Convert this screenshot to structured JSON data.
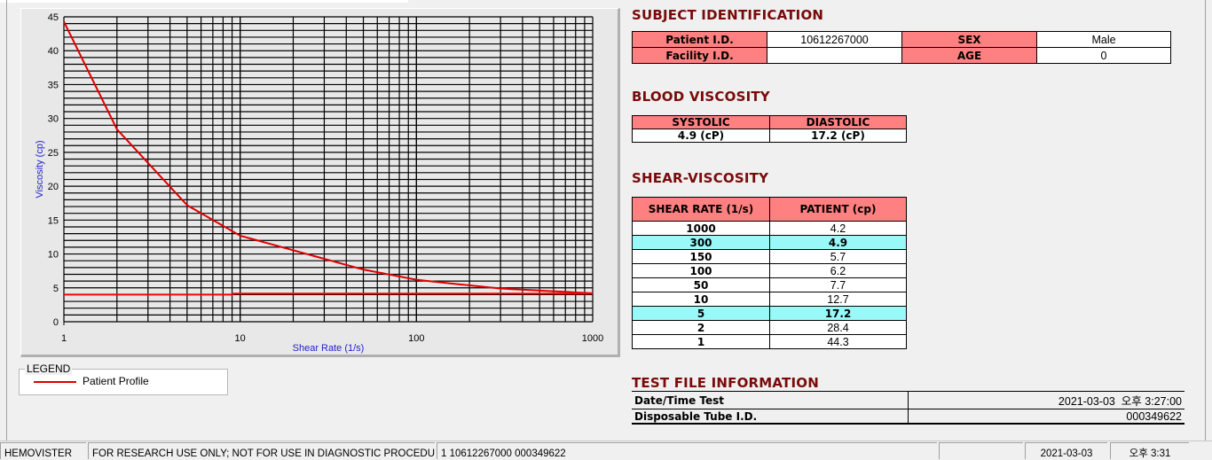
{
  "chart_data": {
    "type": "line",
    "xlabel": "Shear Rate (1/s)",
    "ylabel": "Viscosity (cp)",
    "x_scale": "log",
    "xlim": [
      1,
      1000
    ],
    "ylim": [
      0,
      45
    ],
    "x_ticks": [
      "1",
      "10",
      "100",
      "1000"
    ],
    "y_ticks": [
      "0",
      "5",
      "10",
      "15",
      "20",
      "25",
      "30",
      "35",
      "40",
      "45"
    ],
    "grid": true,
    "series": [
      {
        "name": "Patient Profile",
        "color": "#dd0000",
        "x": [
          1,
          2,
          5,
          10,
          50,
          100,
          150,
          300,
          1000
        ],
        "y": [
          44.3,
          28.4,
          17.2,
          12.7,
          7.7,
          6.2,
          5.7,
          4.9,
          4.2
        ]
      },
      {
        "color": "#ff0000",
        "x": [
          1,
          9,
          9.2,
          1000
        ],
        "y": [
          4.0,
          4.0,
          4.15,
          4.15
        ]
      }
    ]
  },
  "legend": {
    "title": "LEGEND",
    "items": [
      "Patient Profile"
    ]
  },
  "subject": {
    "title": "SUBJECT IDENTIFICATION",
    "patient_id_label": "Patient I.D.",
    "patient_id": "10612267000",
    "sex_label": "SEX",
    "sex": "Male",
    "facility_label": "Facility I.D.",
    "facility": "",
    "age_label": "AGE",
    "age": "0"
  },
  "blood": {
    "title": "BLOOD VISCOSITY",
    "systolic_label": "SYSTOLIC",
    "diastolic_label": "DIASTOLIC",
    "systolic": "4.9 (cP)",
    "diastolic": "17.2 (cP)"
  },
  "shear": {
    "title": "SHEAR-VISCOSITY",
    "col1": "SHEAR RATE (1/s)",
    "col2": "PATIENT (cp)",
    "rows": [
      {
        "rate": "1000",
        "value": "4.2",
        "highlight": false
      },
      {
        "rate": "300",
        "value": "4.9",
        "highlight": true
      },
      {
        "rate": "150",
        "value": "5.7",
        "highlight": false
      },
      {
        "rate": "100",
        "value": "6.2",
        "highlight": false
      },
      {
        "rate": "50",
        "value": "7.7",
        "highlight": false
      },
      {
        "rate": "10",
        "value": "12.7",
        "highlight": false
      },
      {
        "rate": "5",
        "value": "17.2",
        "highlight": true
      },
      {
        "rate": "2",
        "value": "28.4",
        "highlight": false
      },
      {
        "rate": "1",
        "value": "44.3",
        "highlight": false
      }
    ]
  },
  "testfile": {
    "title": "TEST FILE INFORMATION",
    "datetime_label": "Date/Time Test",
    "datetime": "2021-03-03  오후 3:27:00",
    "tube_label": "Disposable Tube I.D.",
    "tube": "000349622"
  },
  "statusbar": {
    "app": "HEMOVISTER",
    "notice": "FOR RESEARCH USE ONLY; NOT FOR USE IN DIAGNOSTIC PROCEDURES",
    "record": "1  10612267000  000349622",
    "blank": "",
    "date": "2021-03-03",
    "time": "오후 3:31"
  },
  "colors": {
    "header_bg": "#ff8080",
    "highlight": "#99f9f9",
    "section_title": "#7a0a0a",
    "curve": "#dd0000"
  }
}
